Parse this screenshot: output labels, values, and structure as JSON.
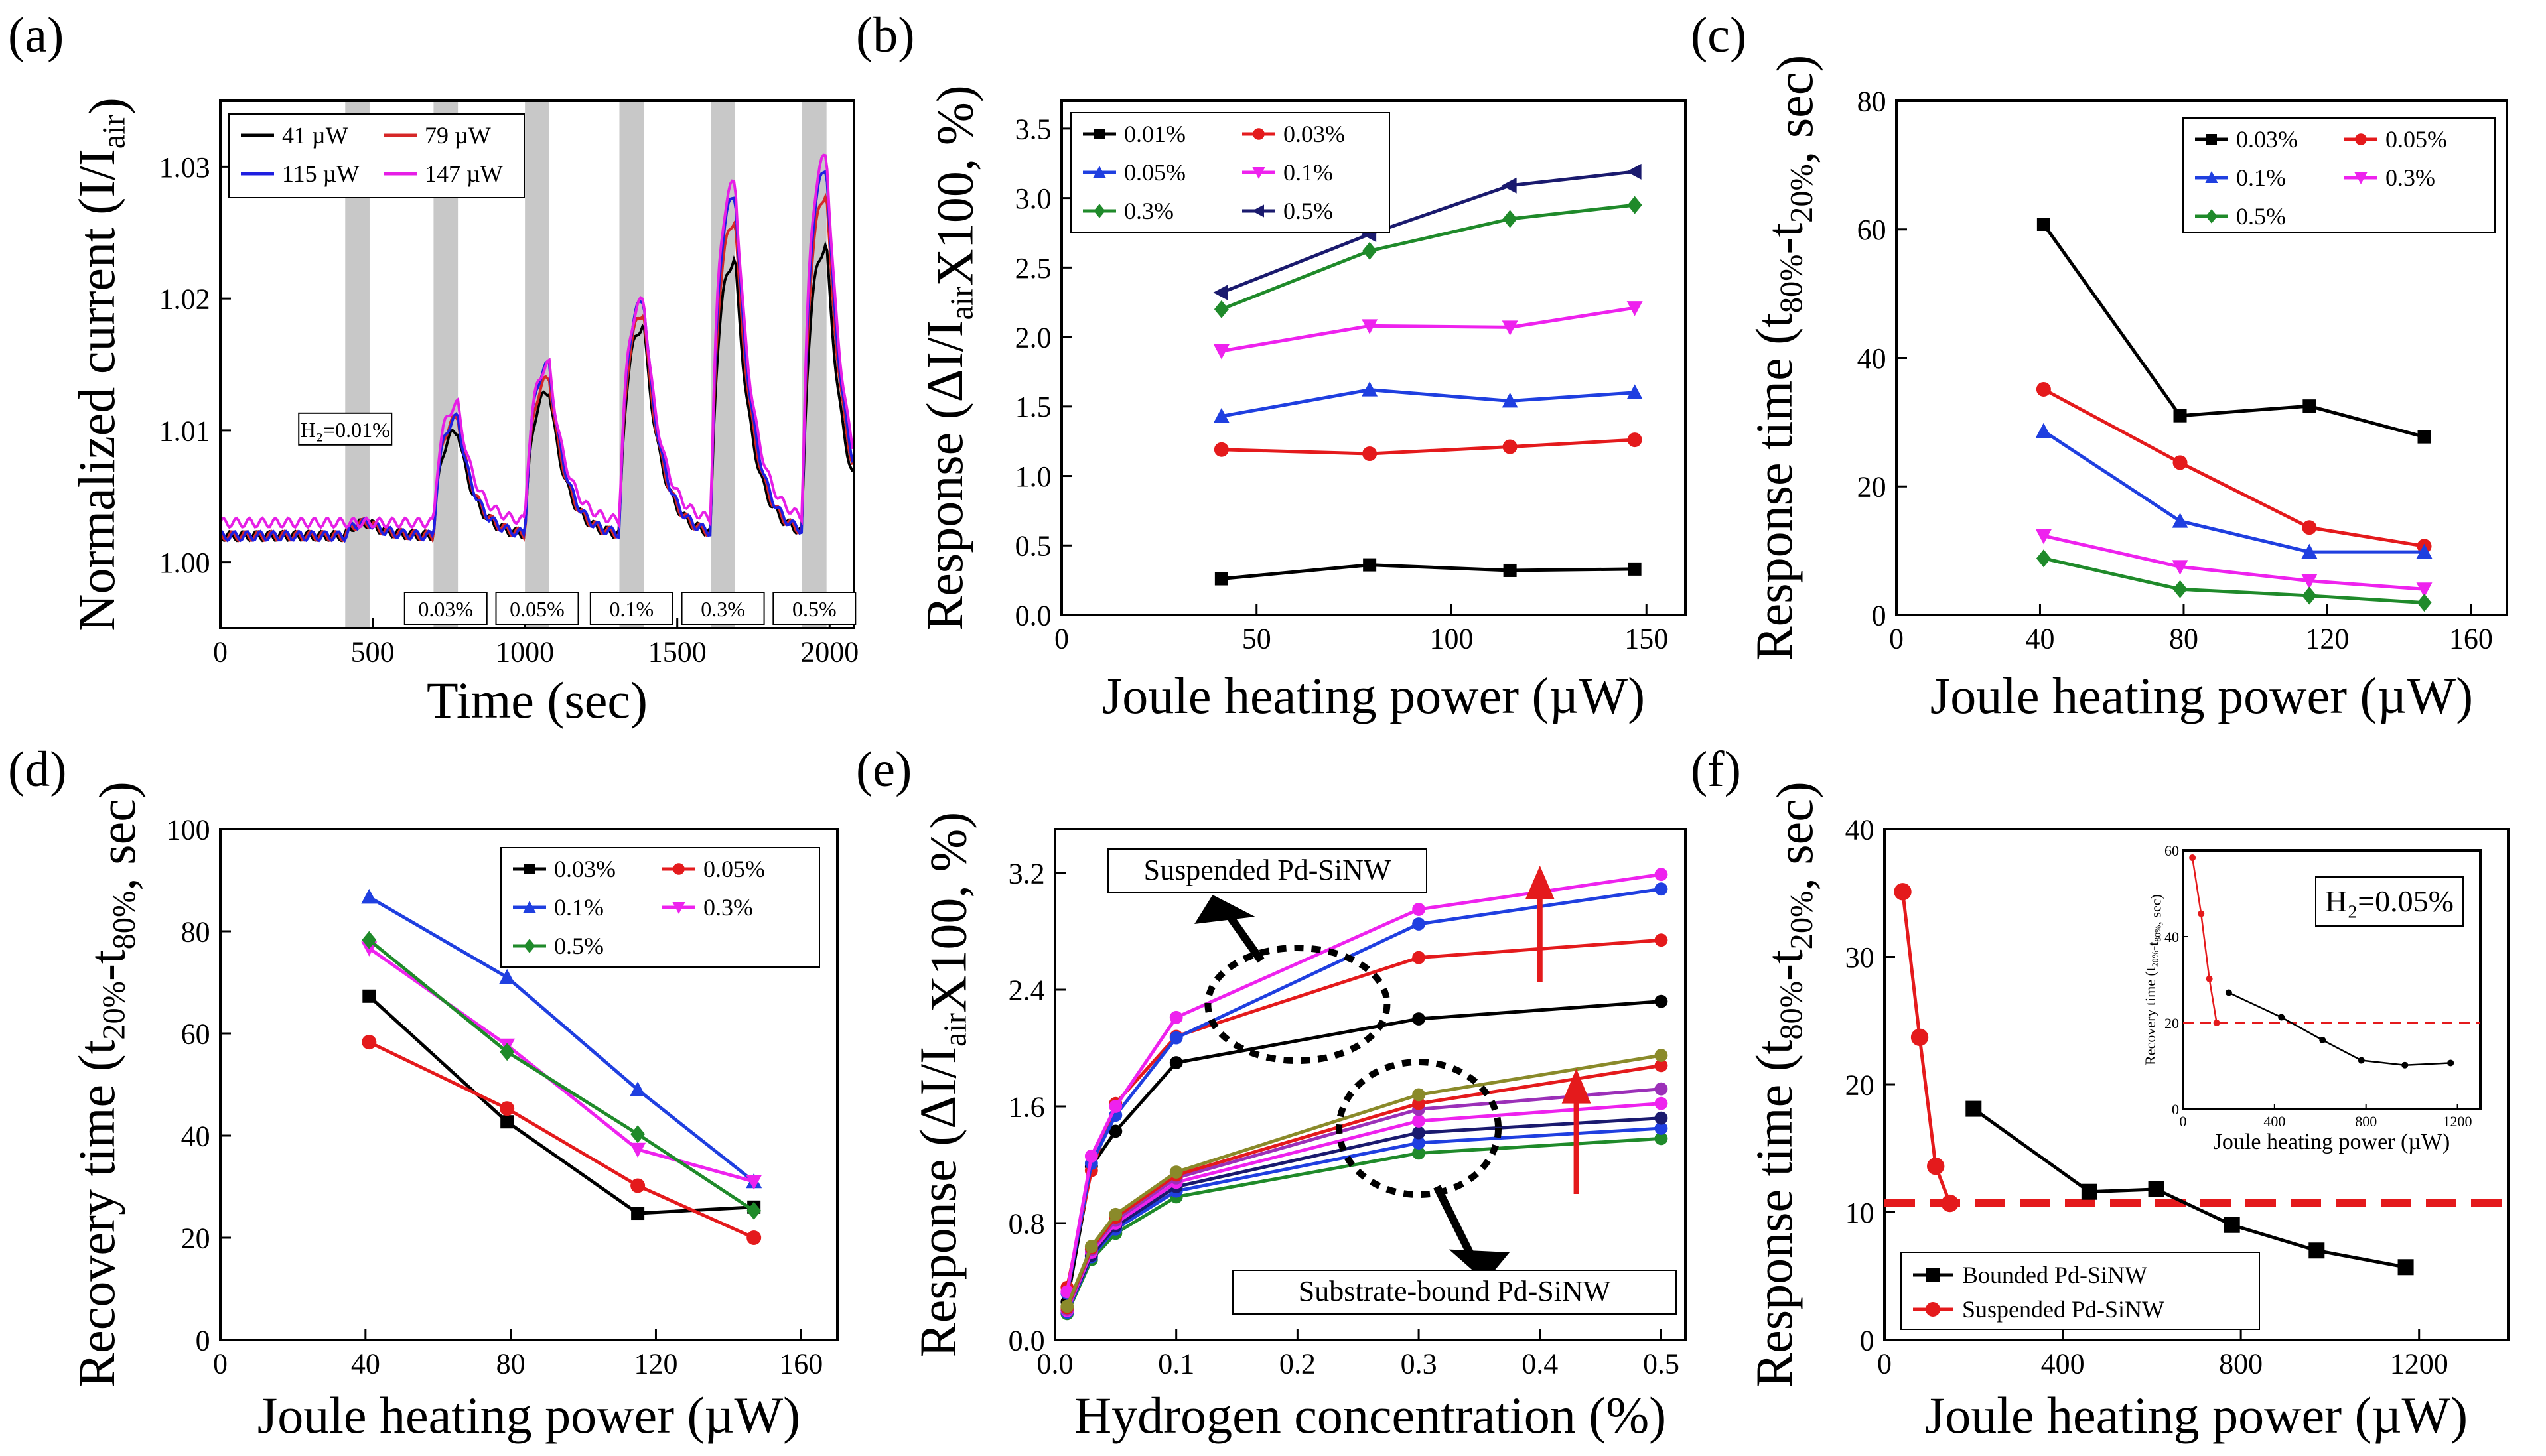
{
  "chart_data": [
    {
      "panel": "(a)",
      "type": "line",
      "xlabel": "Time (sec)",
      "ylabel": "Normalized current (I/I",
      "ylabel_sub": "air",
      "ylabel_end": ")",
      "xlim": [
        0,
        2080
      ],
      "ylim": [
        0.995,
        1.035
      ],
      "xticks": [
        0,
        500,
        1000,
        1500,
        2000
      ],
      "yticks": [
        1.0,
        1.01,
        1.02,
        1.03
      ],
      "ytick_labels": [
        "1.00",
        "1.01",
        "1.02",
        "1.03"
      ],
      "exposure_windows": [
        {
          "start": 410,
          "end": 490,
          "label": "H₂=0.01%"
        },
        {
          "start": 700,
          "end": 780,
          "label": "0.03%"
        },
        {
          "start": 1000,
          "end": 1080,
          "label": "0.05%"
        },
        {
          "start": 1310,
          "end": 1390,
          "label": "0.1%"
        },
        {
          "start": 1610,
          "end": 1690,
          "label": "0.3%"
        },
        {
          "start": 1910,
          "end": 1990,
          "label": "0.5%"
        }
      ],
      "series": [
        {
          "name": "41 µW",
          "color": "#000000",
          "peaks": [
            1.003,
            1.01,
            1.013,
            1.018,
            1.023,
            1.024
          ],
          "baseline": 1.002
        },
        {
          "name": "79 µW",
          "color": "#d62728",
          "peaks": [
            1.003,
            1.011,
            1.014,
            1.019,
            1.026,
            1.028
          ],
          "baseline": 1.002
        },
        {
          "name": "115 µW",
          "color": "#1f1fe0",
          "peaks": [
            1.003,
            1.011,
            1.015,
            1.02,
            1.028,
            1.03
          ],
          "baseline": 1.002
        },
        {
          "name": "147 µW",
          "color": "#e61ee6",
          "peaks": [
            1.003,
            1.012,
            1.015,
            1.02,
            1.029,
            1.031
          ],
          "baseline": 1.003
        }
      ]
    },
    {
      "panel": "(b)",
      "type": "line",
      "xlabel": "Joule heating power (µW)",
      "ylabel": "Response (ΔI/I",
      "ylabel_sub": "air",
      "ylabel_end": "X100, %)",
      "xlim": [
        0,
        160
      ],
      "ylim": [
        0,
        3.7
      ],
      "xticks": [
        0,
        50,
        100,
        150
      ],
      "yticks": [
        0.0,
        0.5,
        1.0,
        1.5,
        2.0,
        2.5,
        3.0,
        3.5
      ],
      "ytick_labels": [
        "0.0",
        "0.5",
        "1.0",
        "1.5",
        "2.0",
        "2.5",
        "3.0",
        "3.5"
      ],
      "x": [
        41,
        79,
        115,
        147
      ],
      "series": [
        {
          "name": "0.01%",
          "color": "#000000",
          "marker": "square",
          "values": [
            0.26,
            0.36,
            0.32,
            0.33
          ]
        },
        {
          "name": "0.03%",
          "color": "#e41a1c",
          "marker": "circle",
          "values": [
            1.19,
            1.16,
            1.21,
            1.26
          ]
        },
        {
          "name": "0.05%",
          "color": "#1f3fe0",
          "marker": "triangle",
          "values": [
            1.43,
            1.62,
            1.54,
            1.6
          ]
        },
        {
          "name": "0.1%",
          "color": "#ee22ee",
          "marker": "triangle-down",
          "values": [
            1.9,
            2.08,
            2.07,
            2.21
          ]
        },
        {
          "name": "0.3%",
          "color": "#1f8a2a",
          "marker": "diamond",
          "values": [
            2.2,
            2.62,
            2.85,
            2.95
          ]
        },
        {
          "name": "0.5%",
          "color": "#1a1a6e",
          "marker": "triangle-left",
          "values": [
            2.32,
            2.74,
            3.09,
            3.19
          ]
        }
      ]
    },
    {
      "panel": "(c)",
      "type": "line",
      "xlabel": "Joule heating power (µW)",
      "ylabel": "Response time (t",
      "ylabel_sub": "80%",
      "ylabel_mid": "-t",
      "ylabel_sub2": "20%",
      "ylabel_end": ", sec)",
      "xlim": [
        0,
        170
      ],
      "ylim": [
        0,
        80
      ],
      "xticks": [
        0,
        40,
        80,
        120,
        160
      ],
      "yticks": [
        0,
        20,
        40,
        60,
        80
      ],
      "ytick_labels": [
        "0",
        "20",
        "40",
        "60",
        "80"
      ],
      "x": [
        41,
        79,
        115,
        147
      ],
      "series": [
        {
          "name": "0.03%",
          "color": "#000000",
          "marker": "square",
          "values": [
            60.8,
            31.0,
            32.5,
            27.7
          ]
        },
        {
          "name": "0.05%",
          "color": "#e41a1c",
          "marker": "circle",
          "values": [
            35.1,
            23.7,
            13.6,
            10.7
          ]
        },
        {
          "name": "0.1%",
          "color": "#1f3fe0",
          "marker": "triangle",
          "values": [
            28.6,
            14.6,
            9.8,
            9.8
          ]
        },
        {
          "name": "0.3%",
          "color": "#ee22ee",
          "marker": "triangle-down",
          "values": [
            12.3,
            7.5,
            5.3,
            4.0
          ]
        },
        {
          "name": "0.5%",
          "color": "#1f8a2a",
          "marker": "diamond",
          "values": [
            8.8,
            4.0,
            3.0,
            1.9
          ]
        }
      ]
    },
    {
      "panel": "(d)",
      "type": "line",
      "xlabel": "Joule heating power (µW)",
      "ylabel": "Recovery time (t",
      "ylabel_sub": "20%",
      "ylabel_mid": "-t",
      "ylabel_sub2": "80%",
      "ylabel_end": ", sec)",
      "xlim": [
        0,
        170
      ],
      "ylim": [
        0,
        100
      ],
      "xticks": [
        0,
        40,
        80,
        120,
        160
      ],
      "yticks": [
        0,
        20,
        40,
        60,
        80,
        100
      ],
      "ytick_labels": [
        "0",
        "20",
        "40",
        "60",
        "80",
        "100"
      ],
      "x": [
        41,
        79,
        115,
        147
      ],
      "series": [
        {
          "name": "0.03%",
          "color": "#000000",
          "marker": "square",
          "values": [
            67.3,
            42.7,
            24.8,
            26.0
          ]
        },
        {
          "name": "0.05%",
          "color": "#e41a1c",
          "marker": "circle",
          "values": [
            58.3,
            45.3,
            30.2,
            20.0
          ]
        },
        {
          "name": "0.1%",
          "color": "#1f3fe0",
          "marker": "triangle",
          "values": [
            86.7,
            71.0,
            49.0,
            31.0
          ]
        },
        {
          "name": "0.3%",
          "color": "#ee22ee",
          "marker": "triangle-down",
          "values": [
            76.7,
            57.7,
            37.3,
            31.0
          ]
        },
        {
          "name": "0.5%",
          "color": "#1f8a2a",
          "marker": "diamond",
          "values": [
            78.3,
            56.4,
            40.3,
            25.3
          ]
        }
      ]
    },
    {
      "panel": "(e)",
      "type": "line",
      "xlabel": "Hydrogen concentration (%)",
      "ylabel": "Response (ΔI/I",
      "ylabel_sub": "air",
      "ylabel_end": "X100, %)",
      "xlim": [
        0,
        0.52
      ],
      "ylim": [
        0,
        3.5
      ],
      "xticks": [
        0.0,
        0.1,
        0.2,
        0.3,
        0.4,
        0.5
      ],
      "xtick_labels": [
        "0.0",
        "0.1",
        "0.2",
        "0.3",
        "0.4",
        "0.5"
      ],
      "yticks": [
        0.0,
        0.8,
        1.6,
        2.4,
        3.2
      ],
      "ytick_labels": [
        "0.0",
        "0.8",
        "1.6",
        "2.4",
        "3.2"
      ],
      "x": [
        0.01,
        0.03,
        0.05,
        0.1,
        0.3,
        0.5
      ],
      "annotations": [
        "Suspended Pd-SiNW",
        "Substrate-bound Pd-SiNW"
      ],
      "series": [
        {
          "name": "Suspended 1",
          "color": "#000000",
          "values": [
            0.26,
            1.19,
            1.43,
            1.9,
            2.2,
            2.32
          ]
        },
        {
          "name": "Suspended 2",
          "color": "#e41a1c",
          "values": [
            0.36,
            1.16,
            1.62,
            2.08,
            2.62,
            2.74
          ]
        },
        {
          "name": "Suspended 3",
          "color": "#1f3fe0",
          "values": [
            0.32,
            1.21,
            1.54,
            2.07,
            2.85,
            3.09
          ]
        },
        {
          "name": "Suspended 4",
          "color": "#ee22ee",
          "values": [
            0.33,
            1.26,
            1.6,
            2.21,
            2.95,
            3.19
          ]
        },
        {
          "name": "Substrate 1",
          "color": "#1f8a2a",
          "values": [
            0.18,
            0.55,
            0.73,
            0.98,
            1.28,
            1.38
          ]
        },
        {
          "name": "Substrate 2",
          "color": "#1f3fe0",
          "values": [
            0.19,
            0.57,
            0.76,
            1.02,
            1.35,
            1.45
          ]
        },
        {
          "name": "Substrate 3",
          "color": "#1a1a6e",
          "values": [
            0.2,
            0.58,
            0.78,
            1.05,
            1.42,
            1.52
          ]
        },
        {
          "name": "Substrate 4",
          "color": "#ee22ee",
          "values": [
            0.2,
            0.6,
            0.8,
            1.08,
            1.5,
            1.62
          ]
        },
        {
          "name": "Substrate 5",
          "color": "#9b30b8",
          "values": [
            0.21,
            0.62,
            0.82,
            1.11,
            1.58,
            1.72
          ]
        },
        {
          "name": "Substrate 6",
          "color": "#e41a1c",
          "values": [
            0.22,
            0.63,
            0.84,
            1.13,
            1.62,
            1.88
          ]
        },
        {
          "name": "Substrate 7",
          "color": "#8a8a2a",
          "values": [
            0.23,
            0.64,
            0.86,
            1.15,
            1.68,
            1.95
          ]
        }
      ]
    },
    {
      "panel": "(f)",
      "type": "line",
      "xlabel": "Joule heating power (µW)",
      "ylabel": "Response time (t",
      "ylabel_sub": "80%",
      "ylabel_mid": "-t",
      "ylabel_sub2": "20%",
      "ylabel_end": ", sec)",
      "xlim": [
        0,
        1400
      ],
      "ylim": [
        0,
        40
      ],
      "xticks": [
        0,
        400,
        800,
        1200
      ],
      "yticks": [
        0,
        10,
        20,
        30,
        40
      ],
      "ytick_labels": [
        "0",
        "10",
        "20",
        "30",
        "40"
      ],
      "reference_line": 10.7,
      "series": [
        {
          "name": "Bounded Pd-SiNW",
          "color": "#000000",
          "marker": "square",
          "x": [
            200,
            460,
            610,
            780,
            970,
            1170
          ],
          "values": [
            18.1,
            11.6,
            11.8,
            9.0,
            7.0,
            5.7
          ]
        },
        {
          "name": "Suspended Pd-SiNW",
          "color": "#e41a1c",
          "marker": "circle",
          "x": [
            41,
            79,
            115,
            147
          ],
          "values": [
            35.1,
            23.7,
            13.6,
            10.7
          ]
        }
      ],
      "inset": {
        "label": "H₂=0.05%",
        "xlabel": "Joule heating power (µW)",
        "ylabel": "Recovery time (t",
        "ylabel_sub": "20%",
        "ylabel_mid": "-t",
        "ylabel_sub2": "80%",
        "ylabel_end": ", sec)",
        "xlim": [
          0,
          1300
        ],
        "ylim": [
          0,
          60
        ],
        "xticks": [
          0,
          400,
          800,
          1200
        ],
        "yticks": [
          0,
          20,
          40,
          60
        ],
        "ytick_labels": [
          "0",
          "20",
          "40",
          "60"
        ],
        "reference_line": 20,
        "series": [
          {
            "name": "Bounded Pd-SiNW",
            "color": "#000000",
            "x": [
              200,
              430,
              610,
              780,
              970,
              1170
            ],
            "values": [
              27.0,
              21.3,
              16.0,
              11.3,
              10.2,
              10.7
            ]
          },
          {
            "name": "Suspended Pd-SiNW",
            "color": "#e41a1c",
            "x": [
              41,
              79,
              115,
              147
            ],
            "values": [
              58.3,
              45.3,
              30.2,
              20.0
            ]
          }
        ]
      }
    }
  ]
}
